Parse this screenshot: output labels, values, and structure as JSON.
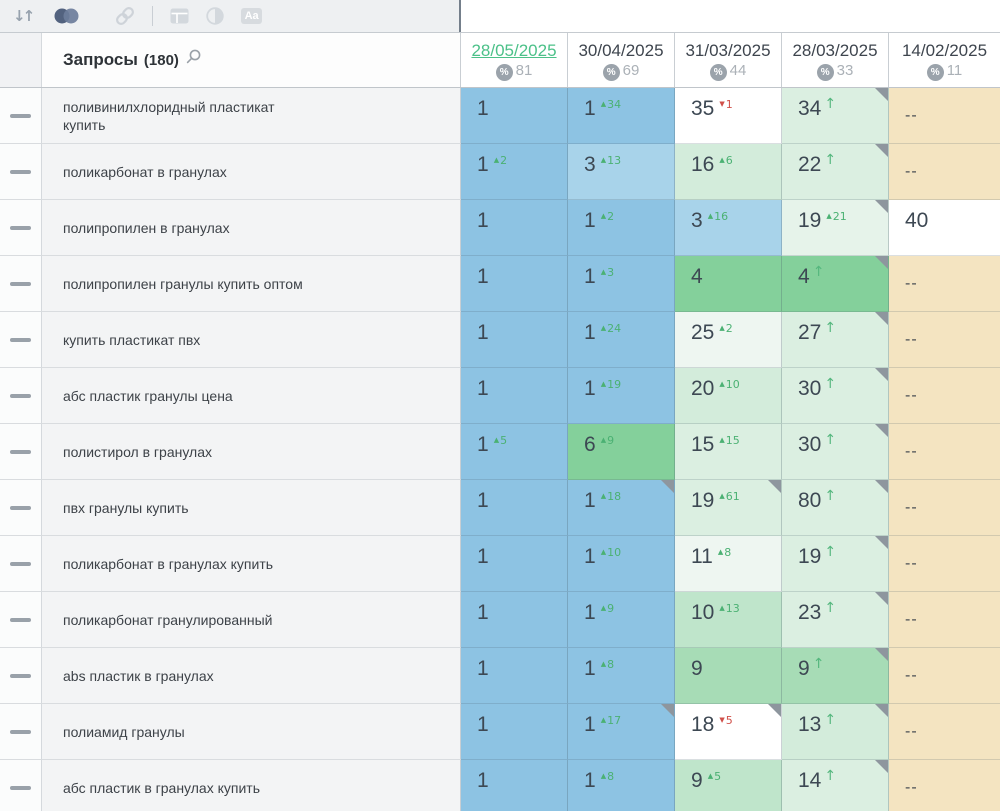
{
  "toolbar": {
    "aa_label": "Aa"
  },
  "icons": {
    "up_triangle": "▲",
    "down_triangle": "▼",
    "up_arrow": "↑",
    "percent": "%",
    "sort": "↓↑"
  },
  "colors": {
    "toolbar_bg": "#eef0f2",
    "active_icon": "#5b6d8a",
    "inactive_icon": "#d3d8dd",
    "date_active_green": "#4cc189",
    "change_up_green": "#4bb173",
    "change_down_red": "#d0504a",
    "corner_gray": "#8e969e",
    "pos_blue": "#8dc3e3",
    "pos_blue_light": "#a8d3ea",
    "pos_green_strong": "#84d09b",
    "pos_green": "#a7dcb6",
    "pos_green_soft": "#bfe5cb",
    "pos_mint": "#dbefe1",
    "pos_mint_pale": "#eef6f1",
    "no_data_tan": "#f4e4c1"
  },
  "table": {
    "query_header": {
      "label": "Запросы",
      "count": "(180)"
    },
    "dates": [
      {
        "date": "28/05/2025",
        "percent": "81",
        "active": true
      },
      {
        "date": "30/04/2025",
        "percent": "69",
        "active": false
      },
      {
        "date": "31/03/2025",
        "percent": "44",
        "active": false
      },
      {
        "date": "28/03/2025",
        "percent": "33",
        "active": false
      },
      {
        "date": "14/02/2025",
        "percent": "11",
        "active": false
      }
    ],
    "rows": [
      {
        "q": "поливинилхлоридный пластикат купить",
        "cells": [
          {
            "v": "1",
            "bg": "b1"
          },
          {
            "v": "1",
            "chg": "34",
            "dir": "up",
            "bg": "b1"
          },
          {
            "v": "35",
            "chg": "1",
            "dir": "down",
            "bg": "w"
          },
          {
            "v": "34",
            "dir": "arrow",
            "bg": "gE",
            "cor": true
          },
          {
            "v": "--",
            "bg": "tan"
          }
        ]
      },
      {
        "q": "поликарбонат в гранулах",
        "cells": [
          {
            "v": "1",
            "chg": "2",
            "dir": "up",
            "bg": "b1"
          },
          {
            "v": "3",
            "chg": "13",
            "dir": "up",
            "bg": "b2"
          },
          {
            "v": "16",
            "chg": "6",
            "dir": "up",
            "bg": "gD"
          },
          {
            "v": "22",
            "dir": "arrow",
            "bg": "gE",
            "cor": true
          },
          {
            "v": "--",
            "bg": "tan"
          }
        ]
      },
      {
        "q": "полипропилен в гранулах",
        "cells": [
          {
            "v": "1",
            "bg": "b1"
          },
          {
            "v": "1",
            "chg": "2",
            "dir": "up",
            "bg": "b1"
          },
          {
            "v": "3",
            "chg": "16",
            "dir": "up",
            "bg": "b2"
          },
          {
            "v": "19",
            "chg": "21",
            "dir": "up",
            "bg": "gF",
            "cor": true
          },
          {
            "v": "40",
            "bg": "w"
          }
        ]
      },
      {
        "q": "полипропилен гранулы купить оптом",
        "cells": [
          {
            "v": "1",
            "bg": "b1"
          },
          {
            "v": "1",
            "chg": "3",
            "dir": "up",
            "bg": "b1"
          },
          {
            "v": "4",
            "bg": "gA"
          },
          {
            "v": "4",
            "dir": "arrow",
            "bg": "gA",
            "cor": true
          },
          {
            "v": "--",
            "bg": "tan"
          }
        ]
      },
      {
        "q": "купить пластикат пвх",
        "cells": [
          {
            "v": "1",
            "bg": "b1"
          },
          {
            "v": "1",
            "chg": "24",
            "dir": "up",
            "bg": "b1"
          },
          {
            "v": "25",
            "chg": "2",
            "dir": "up",
            "bg": "gG"
          },
          {
            "v": "27",
            "dir": "arrow",
            "bg": "gE",
            "cor": true
          },
          {
            "v": "--",
            "bg": "tan"
          }
        ]
      },
      {
        "q": "абс пластик гранулы цена",
        "cells": [
          {
            "v": "1",
            "bg": "b1"
          },
          {
            "v": "1",
            "chg": "19",
            "dir": "up",
            "bg": "b1"
          },
          {
            "v": "20",
            "chg": "10",
            "dir": "up",
            "bg": "gD"
          },
          {
            "v": "30",
            "dir": "arrow",
            "bg": "gE",
            "cor": true
          },
          {
            "v": "--",
            "bg": "tan"
          }
        ]
      },
      {
        "q": "полистирол в гранулах",
        "cells": [
          {
            "v": "1",
            "chg": "5",
            "dir": "up",
            "bg": "b1"
          },
          {
            "v": "6",
            "chg": "9",
            "dir": "up",
            "bg": "gA"
          },
          {
            "v": "15",
            "chg": "15",
            "dir": "up",
            "bg": "gE"
          },
          {
            "v": "30",
            "dir": "arrow",
            "bg": "gE",
            "cor": true
          },
          {
            "v": "--",
            "bg": "tan"
          }
        ]
      },
      {
        "q": "пвх гранулы купить",
        "cells": [
          {
            "v": "1",
            "bg": "b1"
          },
          {
            "v": "1",
            "chg": "18",
            "dir": "up",
            "bg": "b1",
            "cor": true
          },
          {
            "v": "19",
            "chg": "61",
            "dir": "up",
            "bg": "gE",
            "cor": true
          },
          {
            "v": "80",
            "dir": "arrow",
            "bg": "gE",
            "cor": true
          },
          {
            "v": "--",
            "bg": "tan"
          }
        ]
      },
      {
        "q": "поликарбонат в гранулах купить",
        "cells": [
          {
            "v": "1",
            "bg": "b1"
          },
          {
            "v": "1",
            "chg": "10",
            "dir": "up",
            "bg": "b1"
          },
          {
            "v": "11",
            "chg": "8",
            "dir": "up",
            "bg": "gG"
          },
          {
            "v": "19",
            "dir": "arrow",
            "bg": "gE",
            "cor": true
          },
          {
            "v": "--",
            "bg": "tan"
          }
        ]
      },
      {
        "q": "поликарбонат гранулированный",
        "cells": [
          {
            "v": "1",
            "bg": "b1"
          },
          {
            "v": "1",
            "chg": "9",
            "dir": "up",
            "bg": "b1"
          },
          {
            "v": "10",
            "chg": "13",
            "dir": "up",
            "bg": "gC"
          },
          {
            "v": "23",
            "dir": "arrow",
            "bg": "gE",
            "cor": true
          },
          {
            "v": "--",
            "bg": "tan"
          }
        ]
      },
      {
        "q": "abs пластик в гранулах",
        "cells": [
          {
            "v": "1",
            "bg": "b1"
          },
          {
            "v": "1",
            "chg": "8",
            "dir": "up",
            "bg": "b1"
          },
          {
            "v": "9",
            "bg": "gB"
          },
          {
            "v": "9",
            "dir": "arrow",
            "bg": "gB",
            "cor": true
          },
          {
            "v": "--",
            "bg": "tan"
          }
        ]
      },
      {
        "q": "полиамид гранулы",
        "cells": [
          {
            "v": "1",
            "bg": "b1"
          },
          {
            "v": "1",
            "chg": "17",
            "dir": "up",
            "bg": "b1",
            "cor": true
          },
          {
            "v": "18",
            "chg": "5",
            "dir": "down",
            "bg": "w",
            "cor": true
          },
          {
            "v": "13",
            "dir": "arrow",
            "bg": "gD",
            "cor": true
          },
          {
            "v": "--",
            "bg": "tan"
          }
        ]
      },
      {
        "q": "абс пластик в гранулах купить",
        "cells": [
          {
            "v": "1",
            "bg": "b1"
          },
          {
            "v": "1",
            "chg": "8",
            "dir": "up",
            "bg": "b1"
          },
          {
            "v": "9",
            "chg": "5",
            "dir": "up",
            "bg": "gC"
          },
          {
            "v": "14",
            "dir": "arrow",
            "bg": "gE",
            "cor": true
          },
          {
            "v": "--",
            "bg": "tan"
          }
        ]
      }
    ]
  }
}
